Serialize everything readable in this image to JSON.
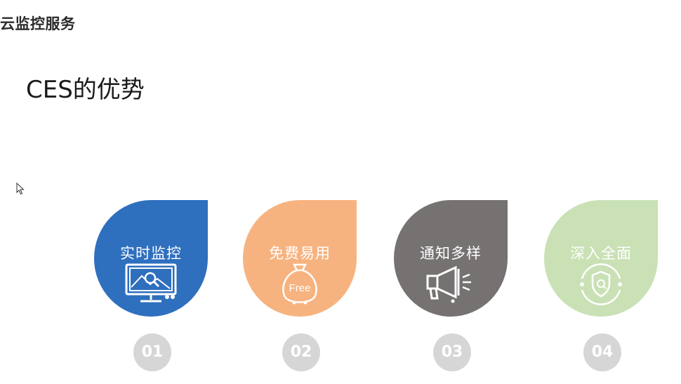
{
  "header": {
    "title": "云监控服务"
  },
  "slide": {
    "title": "CES的优势",
    "cards": [
      {
        "label": "实时监控",
        "number": "01",
        "color": "#2e6fbe",
        "icon": "monitor-icon"
      },
      {
        "label": "免费易用",
        "number": "02",
        "color": "#f7b37f",
        "icon": "free-bag-icon",
        "icon_text": "Free"
      },
      {
        "label": "通知多样",
        "number": "03",
        "color": "#767272",
        "icon": "megaphone-icon"
      },
      {
        "label": "深入全面",
        "number": "04",
        "color": "#c9e1b5",
        "icon": "shield-icon"
      }
    ]
  },
  "colors": {
    "number_badge": "#d6d6d6",
    "label_text": "#ffffff"
  }
}
